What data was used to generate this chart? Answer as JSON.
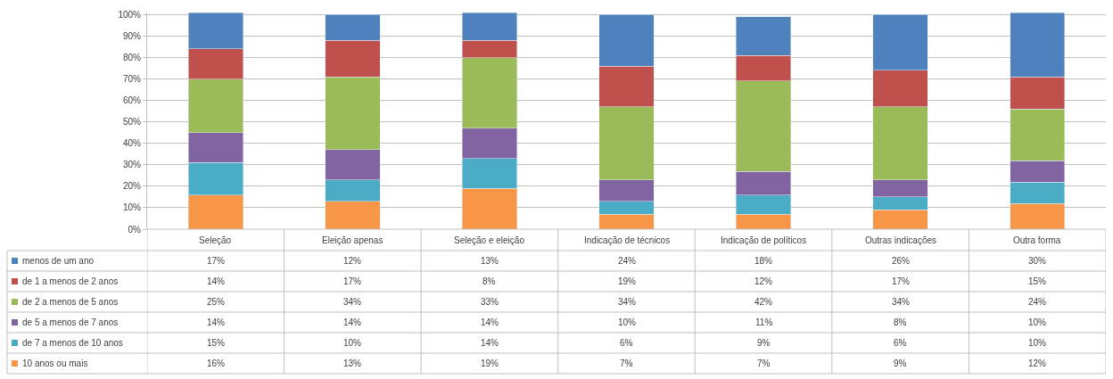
{
  "chart_data": {
    "type": "bar",
    "stacked": true,
    "grid": "y",
    "legend": "bottom left",
    "categories": [
      "Seleção",
      "Eleição apenas",
      "Seleção e eleição",
      "Indicação de técnicos",
      "Indicação de políticos",
      "Outras indicações",
      "Outra forma"
    ],
    "ylim": [
      0,
      101
    ],
    "yticks": [
      {
        "value": 0,
        "label": "0%"
      },
      {
        "value": 10,
        "label": "10%"
      },
      {
        "value": 20,
        "label": "20%"
      },
      {
        "value": 30,
        "label": "30%"
      },
      {
        "value": 40,
        "label": "40%"
      },
      {
        "value": 50,
        "label": "50%"
      },
      {
        "value": 60,
        "label": "60%"
      },
      {
        "value": 70,
        "label": "70%"
      },
      {
        "value": 80,
        "label": "80%"
      },
      {
        "value": 90,
        "label": "90%"
      },
      {
        "value": 100,
        "label": "100%"
      }
    ],
    "series": [
      {
        "name": "10 anos ou mais",
        "color": "#f79646",
        "values": [
          16,
          13,
          19,
          7,
          7,
          9,
          12
        ],
        "value_labels": [
          "16%",
          "13%",
          "19%",
          "7%",
          "7%",
          "9%",
          "12%"
        ]
      },
      {
        "name": "de 7 a menos de 10 anos",
        "color": "#4bacc6",
        "values": [
          15,
          10,
          14,
          6,
          9,
          6,
          10
        ],
        "value_labels": [
          "15%",
          "10%",
          "14%",
          "6%",
          "9%",
          "6%",
          "10%"
        ]
      },
      {
        "name": "de 5 a menos de 7 anos",
        "color": "#8064a2",
        "values": [
          14,
          14,
          14,
          10,
          11,
          8,
          10
        ],
        "value_labels": [
          "14%",
          "14%",
          "14%",
          "10%",
          "11%",
          "8%",
          "10%"
        ]
      },
      {
        "name": "de 2 a menos de 5 anos",
        "color": "#9bbb59",
        "values": [
          25,
          34,
          33,
          34,
          42,
          34,
          24
        ],
        "value_labels": [
          "25%",
          "34%",
          "33%",
          "34%",
          "42%",
          "34%",
          "24%"
        ]
      },
      {
        "name": "de 1 a menos de 2 anos",
        "color": "#c0504d",
        "values": [
          14,
          17,
          8,
          19,
          12,
          17,
          15
        ],
        "value_labels": [
          "14%",
          "17%",
          "8%",
          "19%",
          "12%",
          "17%",
          "15%"
        ]
      },
      {
        "name": "menos de um ano",
        "color": "#4f81bd",
        "values": [
          17,
          12,
          13,
          24,
          18,
          26,
          30
        ],
        "value_labels": [
          "17%",
          "12%",
          "13%",
          "24%",
          "18%",
          "26%",
          "30%"
        ]
      }
    ]
  }
}
